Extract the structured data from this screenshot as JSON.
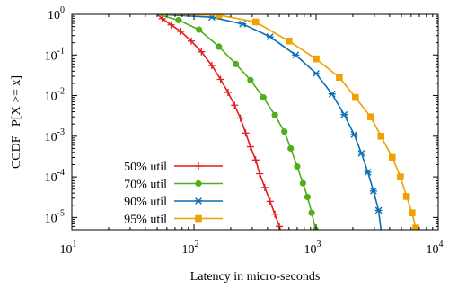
{
  "chart_data": {
    "type": "line",
    "xscale": "log",
    "yscale": "log",
    "xlim": [
      10,
      10000
    ],
    "ylim": [
      5e-06,
      1
    ],
    "xlabel": "Latency in micro-seconds",
    "ylabel": "CCDF   P[X >= x]",
    "grid": false,
    "legend": "bottom-left",
    "x_ticks": [
      {
        "value": 10,
        "base": "10",
        "exp": "1"
      },
      {
        "value": 100,
        "base": "10",
        "exp": "2"
      },
      {
        "value": 1000,
        "base": "10",
        "exp": "3"
      },
      {
        "value": 10000,
        "base": "10",
        "exp": "4"
      }
    ],
    "y_ticks": [
      {
        "value": 1,
        "base": "10",
        "exp": "0"
      },
      {
        "value": 0.1,
        "base": "10",
        "exp": "-1"
      },
      {
        "value": 0.01,
        "base": "10",
        "exp": "-2"
      },
      {
        "value": 0.001,
        "base": "10",
        "exp": "-3"
      },
      {
        "value": 0.0001,
        "base": "10",
        "exp": "-4"
      },
      {
        "value": 1e-05,
        "base": "10",
        "exp": "-5"
      }
    ],
    "series": [
      {
        "name": "50% util",
        "color": "#e41a1c",
        "marker": "plus",
        "points": [
          [
            50,
            1
          ],
          [
            55,
            0.78
          ],
          [
            65,
            0.55
          ],
          [
            78,
            0.38
          ],
          [
            95,
            0.22
          ],
          [
            115,
            0.12
          ],
          [
            140,
            0.055
          ],
          [
            165,
            0.025
          ],
          [
            190,
            0.012
          ],
          [
            215,
            0.0058
          ],
          [
            240,
            0.0028
          ],
          [
            265,
            0.0012
          ],
          [
            290,
            0.00055
          ],
          [
            320,
            0.00026
          ],
          [
            345,
            0.00012
          ],
          [
            380,
            5.5e-05
          ],
          [
            420,
            2.5e-05
          ],
          [
            460,
            1.2e-05
          ],
          [
            500,
            6e-06
          ],
          [
            530,
            3.5e-06
          ]
        ]
      },
      {
        "name": "70% util",
        "color": "#4daf1a",
        "marker": "circle",
        "points": [
          [
            50,
            1
          ],
          [
            75,
            0.72
          ],
          [
            110,
            0.42
          ],
          [
            160,
            0.16
          ],
          [
            220,
            0.06
          ],
          [
            290,
            0.024
          ],
          [
            370,
            0.009
          ],
          [
            460,
            0.0033
          ],
          [
            550,
            0.0013
          ],
          [
            620,
            0.0005
          ],
          [
            700,
            0.00018
          ],
          [
            780,
            7e-05
          ],
          [
            850,
            3.2e-05
          ],
          [
            920,
            1.3e-05
          ],
          [
            990,
            5e-06
          ],
          [
            1030,
            3.5e-06
          ]
        ]
      },
      {
        "name": "90% util",
        "color": "#0a6eb4",
        "marker": "star",
        "points": [
          [
            50,
            1
          ],
          [
            140,
            0.85
          ],
          [
            250,
            0.58
          ],
          [
            420,
            0.28
          ],
          [
            680,
            0.1
          ],
          [
            1000,
            0.035
          ],
          [
            1350,
            0.011
          ],
          [
            1700,
            0.0034
          ],
          [
            2050,
            0.0011
          ],
          [
            2350,
            0.00038
          ],
          [
            2650,
            0.00013
          ],
          [
            2950,
            4.5e-05
          ],
          [
            3250,
            1.5e-05
          ],
          [
            3450,
            3.5e-06
          ]
        ]
      },
      {
        "name": "95% util",
        "color": "#f0a000",
        "marker": "square",
        "points": [
          [
            50,
            1
          ],
          [
            160,
            0.96
          ],
          [
            320,
            0.65
          ],
          [
            600,
            0.22
          ],
          [
            1000,
            0.08
          ],
          [
            1550,
            0.028
          ],
          [
            2100,
            0.009
          ],
          [
            2800,
            0.003
          ],
          [
            3400,
            0.001
          ],
          [
            4200,
            0.0003
          ],
          [
            4900,
            0.0001
          ],
          [
            5500,
            3.3e-05
          ],
          [
            6100,
            1.3e-05
          ],
          [
            6550,
            5.5e-06
          ],
          [
            6900,
            3.5e-06
          ]
        ]
      }
    ]
  }
}
